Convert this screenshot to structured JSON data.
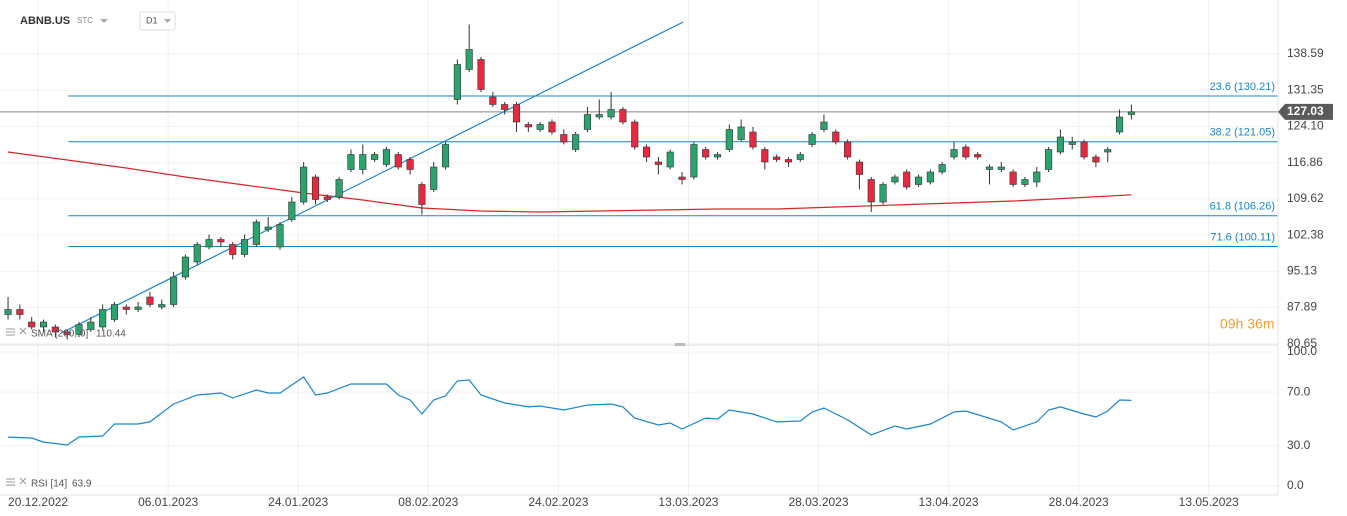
{
  "chart_data": {
    "type": "candlestick",
    "symbol": "ABNB.US",
    "asset_class": "STC",
    "interval": "D1",
    "timer": "09h 36m",
    "up_color": "#2aa36c",
    "down_color": "#e8283f",
    "open": [
      86.5,
      87.5,
      85,
      84,
      84,
      83,
      82.5,
      83.5,
      84,
      85.5,
      88,
      87.5,
      90,
      88,
      88.5,
      94,
      97,
      100,
      101.5,
      100.5,
      98.5,
      100.5,
      103.5,
      100,
      105.5,
      109,
      114,
      110,
      110,
      115.5,
      115.5,
      117.5,
      116.5,
      118.5,
      117.5,
      112.5,
      111.5,
      116,
      129.5,
      135.5,
      137.5,
      130,
      128.5,
      128.5,
      124.5,
      123.5,
      125,
      122.5,
      119.5,
      123.5,
      126,
      126,
      127.5,
      125,
      120,
      117,
      116,
      114,
      114,
      119.5,
      118,
      119.5,
      121.5,
      123,
      119.5,
      118,
      117.5,
      117.5,
      120.5,
      123.5,
      123,
      121,
      117,
      113.5,
      109,
      113,
      115,
      112.5,
      113,
      115,
      118,
      120,
      118.5,
      115.5,
      115.5,
      115,
      112.5,
      113,
      115.5,
      119,
      120.5,
      121,
      118,
      119,
      123,
      126.5
    ],
    "high": [
      90,
      88.5,
      86,
      85.5,
      84.5,
      83.5,
      85,
      86,
      88.5,
      89,
      88.5,
      89,
      91,
      89.5,
      95,
      98.5,
      101,
      102.5,
      102,
      101,
      102.5,
      105.5,
      106,
      105,
      110,
      117,
      114.5,
      110.5,
      114,
      119.5,
      120.5,
      119,
      120,
      119,
      118,
      113,
      117,
      121,
      137.5,
      144.5,
      138,
      131,
      129,
      129,
      125,
      125,
      125.5,
      123.5,
      123,
      128,
      129.5,
      131,
      128,
      125.5,
      120.5,
      118,
      119.5,
      115,
      121,
      120,
      119,
      124.5,
      125.5,
      124,
      120,
      118.5,
      118,
      119,
      123,
      126.5,
      123.5,
      121.5,
      117.5,
      114,
      113,
      114.5,
      115.5,
      114.5,
      115.5,
      117,
      121,
      120.5,
      119,
      116.5,
      117,
      115.5,
      114,
      116,
      120,
      123.5,
      122,
      121.5,
      118.5,
      120,
      127.5,
      128.5
    ],
    "low": [
      85.5,
      85.5,
      83.5,
      83,
      82,
      81.5,
      82,
      83,
      83.5,
      85,
      86.5,
      87,
      88,
      87.5,
      88,
      93.5,
      96.5,
      99.5,
      100,
      97.5,
      98,
      100,
      103,
      99.5,
      105,
      108.5,
      108.5,
      109,
      109.5,
      115,
      114.5,
      117,
      116,
      115.5,
      114.5,
      106.5,
      111,
      115.5,
      128.5,
      135,
      131,
      128,
      126.5,
      123,
      123,
      123,
      122.5,
      120.5,
      119,
      123,
      125.5,
      125.5,
      124.5,
      119.5,
      117,
      114.5,
      115.5,
      112.5,
      113.5,
      117.5,
      117.5,
      119,
      121,
      119.5,
      115.5,
      117,
      116,
      117,
      120,
      123,
      120.5,
      117.5,
      111.5,
      107,
      108.5,
      112.5,
      111.5,
      112,
      112.5,
      114.5,
      117.5,
      117.5,
      117.5,
      112.5,
      115,
      112,
      112,
      112,
      115,
      118.5,
      119.5,
      117.5,
      116,
      117,
      122.5,
      125.5
    ],
    "close": [
      87.5,
      86.5,
      84,
      85,
      83,
      82.5,
      84.5,
      85,
      87.5,
      88.5,
      87.5,
      88,
      88.5,
      88.5,
      94,
      98,
      100.5,
      101.5,
      101,
      98.5,
      101.5,
      105,
      104,
      104.5,
      109,
      116,
      109.5,
      109.5,
      113.5,
      118.5,
      118.5,
      118.5,
      119.5,
      116,
      115.5,
      108.5,
      116,
      120.5,
      136.5,
      139.5,
      131.5,
      128.5,
      127.5,
      125,
      124,
      124.5,
      123,
      121,
      122.5,
      126.5,
      126.5,
      127.5,
      125,
      120,
      118,
      116.5,
      119,
      113.5,
      120.5,
      118,
      118.5,
      123.5,
      124,
      120,
      117,
      117.5,
      117,
      118.5,
      122.5,
      125,
      121,
      118,
      114.5,
      109,
      112.5,
      114,
      112,
      114,
      115,
      116.5,
      119.5,
      118,
      118,
      116,
      116,
      112.5,
      113.5,
      115,
      119.5,
      122,
      121,
      118,
      117,
      119.5,
      126,
      127.03
    ],
    "last_price": 127.03,
    "sma": {
      "name": "SMA [200, 0]",
      "color": "#d62728",
      "last": 110.44,
      "x": [
        0,
        5,
        10,
        15,
        20,
        25,
        30,
        35,
        40,
        45,
        50,
        55,
        60,
        65,
        70,
        75,
        80,
        85,
        90,
        95
      ],
      "values": [
        119.0,
        117.4,
        115.8,
        114.0,
        112.4,
        110.8,
        109.4,
        107.8,
        107.2,
        107.0,
        107.2,
        107.4,
        107.6,
        107.6,
        108.0,
        108.4,
        108.8,
        109.2,
        109.8,
        110.44
      ]
    },
    "trendline": {
      "color": "#1a86c8",
      "x": [
        4.5,
        57.1
      ],
      "values": [
        82.8,
        145
      ]
    },
    "fib_levels": [
      {
        "label": "23.6 (130.21)",
        "value": 130.21
      },
      {
        "label": "38.2 (121.05)",
        "value": 121.05
      },
      {
        "label": "61.8 (106.26)",
        "value": 106.26
      },
      {
        "label": "71.6 (100.11)",
        "value": 100.11
      }
    ],
    "fib_start": 5.1,
    "xlim": [
      -0.68,
      107.4
    ],
    "xticks": [
      {
        "value": 2.54,
        "label": "20.12.2022"
      },
      {
        "value": 13.54,
        "label": "06.01.2023"
      },
      {
        "value": 24.54,
        "label": "24.01.2023"
      },
      {
        "value": 35.54,
        "label": "08.02.2023"
      },
      {
        "value": 46.54,
        "label": "24.02.2023"
      },
      {
        "value": 57.54,
        "label": "13.03.2023"
      },
      {
        "value": 68.54,
        "label": "28.03.2023"
      },
      {
        "value": 79.54,
        "label": "13.04.2023"
      },
      {
        "value": 90.54,
        "label": "28.04.2023"
      },
      {
        "value": 101.54,
        "label": "13.05.2023"
      }
    ],
    "ylim": [
      80.4,
      149.4
    ],
    "yticks": [
      138.59,
      131.35,
      {
        "value": 124.1,
        "label": "124.10"
      },
      116.86,
      109.62,
      102.38,
      95.13,
      87.89,
      80.65
    ],
    "rsi": {
      "name": "RSI [14]",
      "color": "#1a86c8",
      "last": 63.9,
      "ylim": [
        -6.7,
        105.2
      ],
      "yticks": [
        {
          "value": 100,
          "label": "100.0"
        },
        {
          "value": 70,
          "label": "70.0"
        },
        {
          "value": 30,
          "label": "30.0"
        },
        {
          "value": 0,
          "label": "0.0"
        }
      ],
      "x": [
        0,
        2,
        3,
        5,
        6,
        8,
        9,
        11,
        12,
        14,
        16,
        18,
        19,
        21,
        22,
        23,
        25,
        26,
        27,
        29,
        32,
        33,
        34,
        35,
        36,
        37,
        38,
        39,
        40,
        42,
        44,
        45,
        47,
        49,
        51,
        52,
        53,
        55,
        56,
        57,
        59,
        60,
        61,
        63,
        65,
        67,
        68,
        69,
        71,
        73,
        75,
        76,
        78,
        80,
        81,
        84,
        85,
        87,
        88,
        89,
        91,
        92,
        93,
        94,
        95
      ],
      "values": [
        36.5,
        35.8,
        32.8,
        30.6,
        36.6,
        37.3,
        46.3,
        46.3,
        47.8,
        61.2,
        67.9,
        69.4,
        65.7,
        71.6,
        69.4,
        69.4,
        81.3,
        67.9,
        69.4,
        76.1,
        76.1,
        67.9,
        64.2,
        53.7,
        64.2,
        67.2,
        78.4,
        79.1,
        67.9,
        61.9,
        59,
        59.7,
        56.7,
        60.4,
        61.2,
        59,
        50.7,
        45.5,
        47,
        42.5,
        50.7,
        50,
        56.7,
        53.7,
        47.8,
        48.5,
        55.2,
        58.2,
        49.3,
        38.1,
        44.8,
        42.5,
        46.3,
        55.2,
        56,
        47.8,
        41.8,
        47.8,
        56.7,
        59,
        53.7,
        51.5,
        56,
        64.2,
        63.9
      ]
    }
  }
}
